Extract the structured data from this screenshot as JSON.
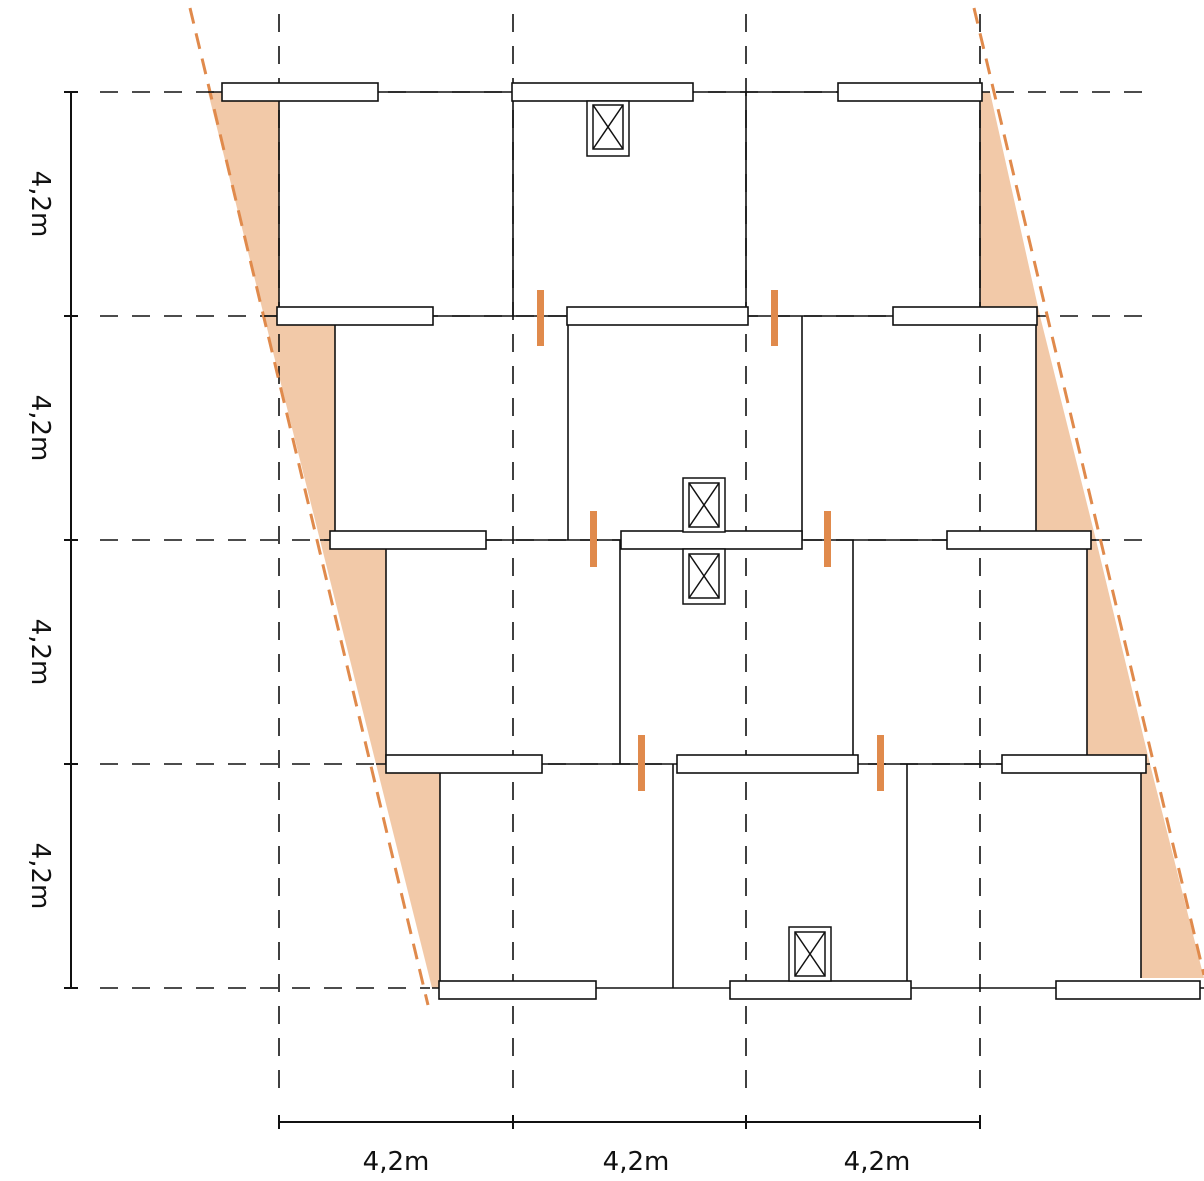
{
  "diagram": {
    "vertical_dimensions": [
      "4,2m",
      "4,2m",
      "4,2m",
      "4,2m"
    ],
    "horizontal_dimensions": [
      "4,2m",
      "4,2m",
      "4,2m"
    ],
    "colors": {
      "shear_fill": "#f2c9a8",
      "shear_line": "#e08a4c",
      "orange_marker": "#e08a4c",
      "structure_line": "#111111"
    }
  }
}
